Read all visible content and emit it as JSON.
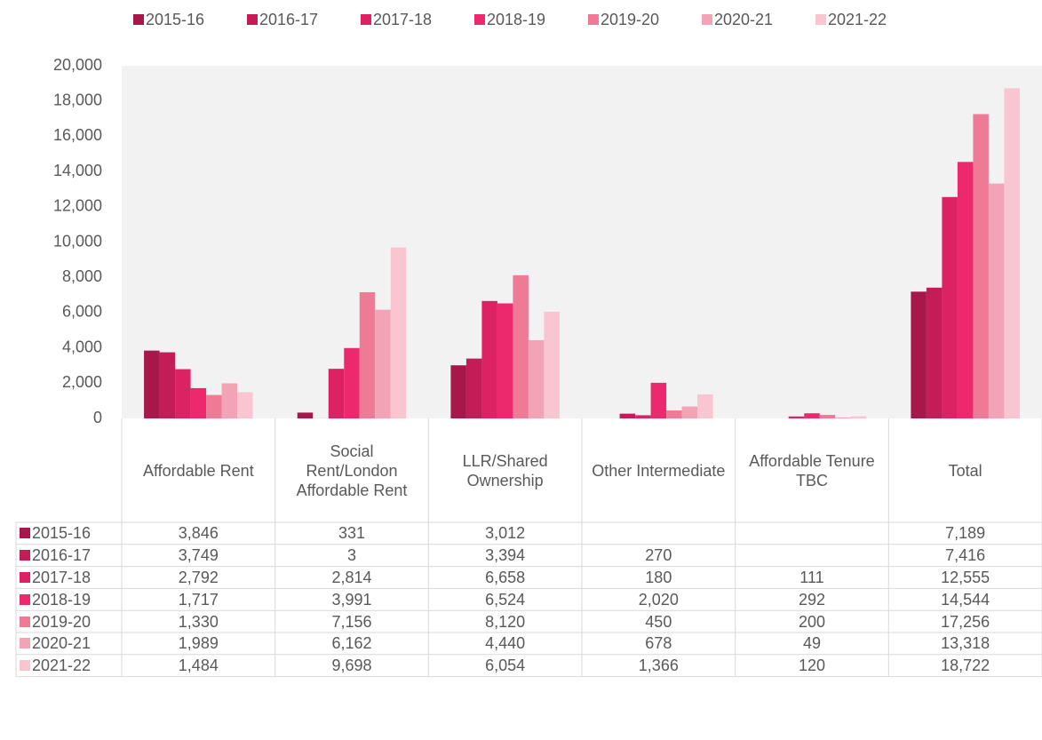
{
  "chart_data": {
    "type": "bar",
    "categories": [
      "Affordable Rent",
      "Social Rent/London Affordable Rent",
      "LLR/Shared Ownership",
      "Other Intermediate",
      "Affordable Tenure TBC",
      "Total"
    ],
    "series": [
      {
        "name": "2015-16",
        "color": "#a8174a",
        "values": [
          3846,
          331,
          3012,
          null,
          null,
          7189
        ],
        "value_labels": [
          "3,846",
          "331",
          "3,012",
          null,
          null,
          "7,189"
        ]
      },
      {
        "name": "2016-17",
        "color": "#c41c57",
        "values": [
          3749,
          3,
          3394,
          270,
          null,
          7416
        ],
        "value_labels": [
          "3,749",
          "3",
          "3,394",
          "270",
          null,
          "7,416"
        ]
      },
      {
        "name": "2017-18",
        "color": "#dc2262",
        "values": [
          2792,
          2814,
          6658,
          180,
          111,
          12555
        ],
        "value_labels": [
          "2,792",
          "2,814",
          "6,658",
          "180",
          "111",
          "12,555"
        ]
      },
      {
        "name": "2018-19",
        "color": "#ec296c",
        "values": [
          1717,
          3991,
          6524,
          2020,
          292,
          14544
        ],
        "value_labels": [
          "1,717",
          "3,991",
          "6,524",
          "2,020",
          "292",
          "14,544"
        ]
      },
      {
        "name": "2019-20",
        "color": "#ef7a96",
        "values": [
          1330,
          7156,
          8120,
          450,
          200,
          17256
        ],
        "value_labels": [
          "1,330",
          "7,156",
          "8,120",
          "450",
          "200",
          "17,256"
        ]
      },
      {
        "name": "2020-21",
        "color": "#f3a3b6",
        "values": [
          1989,
          6162,
          4440,
          678,
          49,
          13318
        ],
        "value_labels": [
          "1,989",
          "6,162",
          "4,440",
          "678",
          "49",
          "13,318"
        ]
      },
      {
        "name": "2021-22",
        "color": "#f8c5d1",
        "values": [
          1484,
          9698,
          6054,
          1366,
          120,
          18722
        ],
        "value_labels": [
          "1,484",
          "9,698",
          "6,054",
          "1,366",
          "120",
          "18,722"
        ]
      }
    ],
    "ylim": [
      0,
      20000
    ],
    "yticks": [
      0,
      {
        "value": 2000,
        "label": "2,000"
      },
      {
        "value": 4000,
        "label": "4,000"
      },
      {
        "value": 6000,
        "label": "6,000"
      },
      {
        "value": 8000,
        "label": "8,000"
      },
      {
        "value": 10000,
        "label": "10,000"
      },
      {
        "value": 12000,
        "label": "12,000"
      },
      {
        "value": 14000,
        "label": "14,000"
      },
      {
        "value": 16000,
        "label": "16,000"
      },
      {
        "value": 18000,
        "label": "18,000"
      },
      {
        "value": 20000,
        "label": "20,000"
      }
    ],
    "grid": false,
    "legend": "top"
  }
}
